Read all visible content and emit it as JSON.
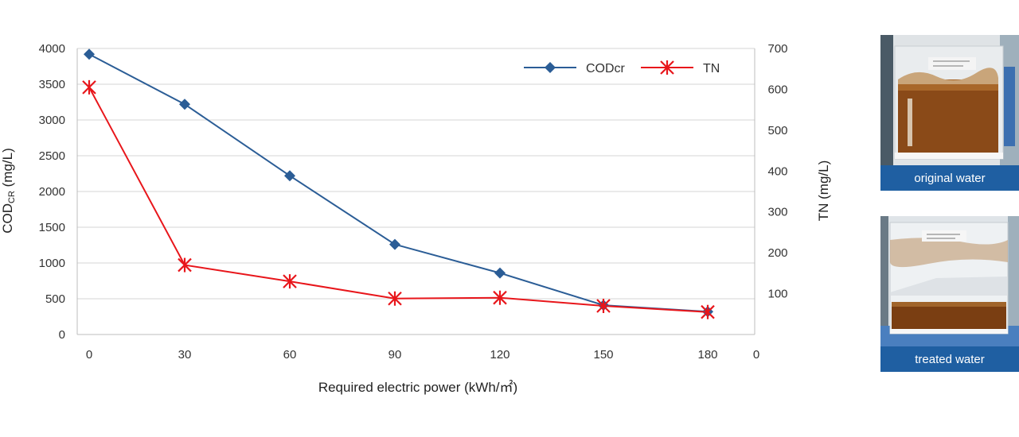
{
  "chart_data": {
    "type": "line",
    "xlabel": "Required electric power (kWh/㎡)",
    "x": [
      0,
      30,
      60,
      90,
      120,
      150,
      180
    ],
    "x_tick_labels": [
      "0",
      "30",
      "60",
      "90",
      "120",
      "150",
      "180"
    ],
    "x_right_label": "0",
    "ylabel_left": {
      "main": "COD",
      "sub": "CR",
      "unit": " (mg/L)"
    },
    "ylabel_right": "TN (mg/L)",
    "ylim_left": [
      0,
      4000
    ],
    "yticks_left": [
      0,
      500,
      1000,
      1500,
      2000,
      2500,
      3000,
      3500,
      4000
    ],
    "ylim_right": [
      0,
      700
    ],
    "yticks_right": [
      100,
      200,
      300,
      400,
      500,
      600,
      700
    ],
    "grid": true,
    "legend_position": "top-right",
    "series": [
      {
        "name": "CODcr",
        "axis": "left",
        "color": "#2b5d96",
        "marker": "diamond",
        "values": [
          3920,
          3220,
          2220,
          1260,
          860,
          410,
          320
        ]
      },
      {
        "name": "TN",
        "axis": "right",
        "color": "#e8161b",
        "marker": "asterisk",
        "values": [
          605,
          170,
          130,
          88,
          90,
          70,
          55
        ]
      }
    ]
  },
  "photos": [
    {
      "caption": "original water"
    },
    {
      "caption": "treated water"
    }
  ]
}
